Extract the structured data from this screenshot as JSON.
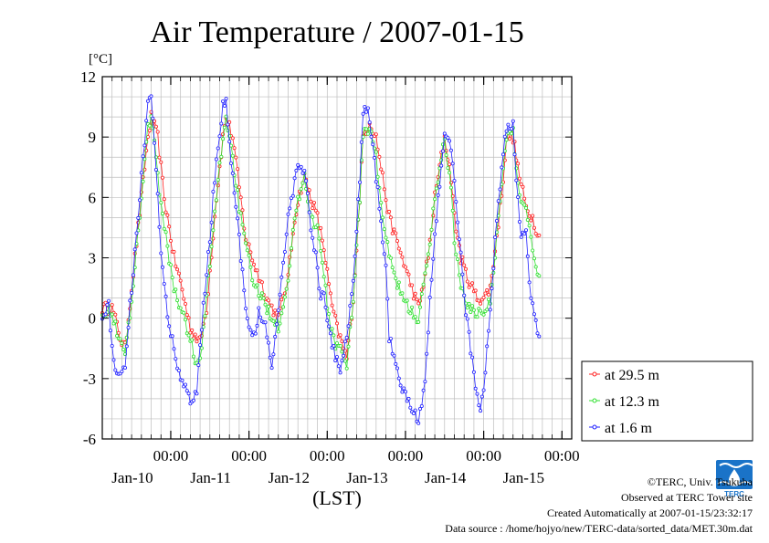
{
  "chart_data": {
    "type": "line",
    "title": "Air Temperature / 2007-01-15",
    "unit_label": "[°C]",
    "xlabel": "(LST)",
    "ylim": [
      -6,
      12
    ],
    "yticks": [
      -6,
      -3,
      0,
      3,
      6,
      9,
      12
    ],
    "xlim_hours": [
      0,
      144
    ],
    "date_ticks": [
      {
        "time": "00:00",
        "date": "Jan-10"
      },
      {
        "time": "00:00",
        "date": "Jan-11"
      },
      {
        "time": "00:00",
        "date": "Jan-12"
      },
      {
        "time": "00:00",
        "date": "Jan-13"
      },
      {
        "time": "00:00",
        "date": "Jan-14"
      },
      {
        "time": "00:00",
        "date": "Jan-15"
      }
    ],
    "legend_position": "right",
    "series": [
      {
        "name": "at 29.5 m",
        "color": "#ff2020",
        "anchors": [
          [
            0,
            0.5
          ],
          [
            3,
            0.5
          ],
          [
            6,
            -1.2
          ],
          [
            7,
            -1.5
          ],
          [
            9,
            1.5
          ],
          [
            12,
            6
          ],
          [
            14,
            9
          ],
          [
            15,
            10
          ],
          [
            17,
            9
          ],
          [
            19,
            6
          ],
          [
            22,
            3
          ],
          [
            24,
            1.8
          ],
          [
            27,
            -0.5
          ],
          [
            30,
            -1.2
          ],
          [
            32,
            0.5
          ],
          [
            35,
            6
          ],
          [
            37,
            9
          ],
          [
            38,
            10
          ],
          [
            40,
            9
          ],
          [
            42,
            6.5
          ],
          [
            44,
            4
          ],
          [
            47,
            2.5
          ],
          [
            51,
            0.8
          ],
          [
            54,
            0
          ],
          [
            57,
            2
          ],
          [
            59,
            5
          ],
          [
            61,
            6.5
          ],
          [
            62,
            7
          ],
          [
            64,
            6
          ],
          [
            66,
            5
          ],
          [
            68,
            3.5
          ],
          [
            70,
            1
          ],
          [
            72,
            -0.5
          ],
          [
            74,
            -1.5
          ],
          [
            75,
            -2
          ],
          [
            77,
            1
          ],
          [
            79,
            6
          ],
          [
            80,
            9
          ],
          [
            82,
            9.8
          ],
          [
            84,
            9
          ],
          [
            86,
            7
          ],
          [
            88,
            5
          ],
          [
            90,
            4
          ],
          [
            92,
            3
          ],
          [
            95,
            1.5
          ],
          [
            97,
            0.5
          ],
          [
            100,
            3
          ],
          [
            102,
            6
          ],
          [
            104,
            8
          ],
          [
            105,
            9
          ],
          [
            107,
            7
          ],
          [
            108,
            5
          ],
          [
            110,
            3
          ],
          [
            112,
            2
          ],
          [
            115,
            1
          ],
          [
            117,
            1
          ],
          [
            119,
            1.5
          ],
          [
            121,
            4
          ],
          [
            123,
            7
          ],
          [
            124,
            9
          ],
          [
            126,
            9
          ],
          [
            128,
            7
          ],
          [
            130,
            5.5
          ],
          [
            132,
            5
          ],
          [
            133,
            4.5
          ],
          [
            134,
            4
          ]
        ]
      },
      {
        "name": "at 12.3 m",
        "color": "#30e030",
        "anchors": [
          [
            0,
            0.4
          ],
          [
            3,
            0.3
          ],
          [
            6,
            -1.5
          ],
          [
            7,
            -1.8
          ],
          [
            9,
            1
          ],
          [
            12,
            6
          ],
          [
            14,
            9.5
          ],
          [
            15,
            10.2
          ],
          [
            17,
            7
          ],
          [
            19,
            4.5
          ],
          [
            22,
            1.5
          ],
          [
            24,
            0.5
          ],
          [
            27,
            -1
          ],
          [
            29,
            -2.3
          ],
          [
            30,
            -2.2
          ],
          [
            32,
            1
          ],
          [
            35,
            6
          ],
          [
            37,
            9
          ],
          [
            38,
            10
          ],
          [
            40,
            8
          ],
          [
            42,
            5.5
          ],
          [
            44,
            3.5
          ],
          [
            47,
            1.5
          ],
          [
            51,
            0.4
          ],
          [
            54,
            -0.4
          ],
          [
            57,
            2
          ],
          [
            59,
            5
          ],
          [
            61,
            6.5
          ],
          [
            62,
            7.1
          ],
          [
            64,
            5
          ],
          [
            66,
            4.5
          ],
          [
            68,
            2
          ],
          [
            70,
            -0.5
          ],
          [
            72,
            -1.5
          ],
          [
            74,
            -1.8
          ],
          [
            75,
            -2.2
          ],
          [
            77,
            1
          ],
          [
            79,
            6
          ],
          [
            80,
            9.2
          ],
          [
            82,
            9.5
          ],
          [
            84,
            8
          ],
          [
            86,
            5
          ],
          [
            88,
            3
          ],
          [
            90,
            2
          ],
          [
            92,
            1
          ],
          [
            95,
            0.3
          ],
          [
            97,
            0
          ],
          [
            100,
            3
          ],
          [
            102,
            6
          ],
          [
            104,
            8
          ],
          [
            105,
            8.8
          ],
          [
            107,
            6.5
          ],
          [
            108,
            4
          ],
          [
            110,
            1.5
          ],
          [
            112,
            0.5
          ],
          [
            115,
            0.3
          ],
          [
            117,
            0.2
          ],
          [
            119,
            1
          ],
          [
            121,
            4
          ],
          [
            123,
            7.5
          ],
          [
            124,
            9
          ],
          [
            126,
            9.2
          ],
          [
            128,
            6
          ],
          [
            130,
            5.5
          ],
          [
            132,
            3.5
          ],
          [
            134,
            2
          ]
        ]
      },
      {
        "name": "at 1.6 m",
        "color": "#2020ff",
        "anchors": [
          [
            0,
            0.2
          ],
          [
            2,
            0.6
          ],
          [
            3,
            -1.6
          ],
          [
            4,
            -2.6
          ],
          [
            6,
            -2.7
          ],
          [
            7,
            -2.2
          ],
          [
            9,
            1.5
          ],
          [
            12,
            7
          ],
          [
            14,
            10.5
          ],
          [
            15,
            11
          ],
          [
            16,
            8.5
          ],
          [
            18,
            3.5
          ],
          [
            20,
            0
          ],
          [
            22,
            -1.5
          ],
          [
            24,
            -3
          ],
          [
            26,
            -3.8
          ],
          [
            27,
            -4.2
          ],
          [
            29,
            -3.5
          ],
          [
            31,
            0.5
          ],
          [
            33,
            4
          ],
          [
            35,
            8
          ],
          [
            37,
            10.5
          ],
          [
            38,
            10.8
          ],
          [
            40,
            7
          ],
          [
            42,
            4
          ],
          [
            44,
            0.5
          ],
          [
            46,
            -1
          ],
          [
            47,
            -1
          ],
          [
            48,
            0.5
          ],
          [
            50,
            -0.5
          ],
          [
            52,
            -2.5
          ],
          [
            53,
            -1
          ],
          [
            55,
            2
          ],
          [
            57,
            5
          ],
          [
            59,
            6.8
          ],
          [
            60,
            7.5
          ],
          [
            62,
            7.3
          ],
          [
            63,
            6
          ],
          [
            64,
            4.5
          ],
          [
            65,
            3.5
          ],
          [
            66,
            2.5
          ],
          [
            67,
            1
          ],
          [
            68,
            1
          ],
          [
            70,
            -1
          ],
          [
            72,
            -2.2
          ],
          [
            73,
            -2.5
          ],
          [
            75,
            -1
          ],
          [
            77,
            2
          ],
          [
            79,
            7
          ],
          [
            80,
            10
          ],
          [
            81,
            10.5
          ],
          [
            82,
            9.8
          ],
          [
            84,
            7
          ],
          [
            86,
            4
          ],
          [
            87,
            2.5
          ],
          [
            88,
            -1
          ],
          [
            90,
            -2
          ],
          [
            91,
            -3
          ],
          [
            92,
            -3.5
          ],
          [
            94,
            -4
          ],
          [
            96,
            -4.8
          ],
          [
            97,
            -5.2
          ],
          [
            99,
            -3
          ],
          [
            101,
            2
          ],
          [
            103,
            6
          ],
          [
            105,
            9
          ],
          [
            106,
            9.2
          ],
          [
            108,
            7
          ],
          [
            110,
            3
          ],
          [
            111,
            1
          ],
          [
            113,
            -1.5
          ],
          [
            115,
            -4
          ],
          [
            116,
            -4.5
          ],
          [
            117,
            -3.5
          ],
          [
            118,
            -1.5
          ],
          [
            119,
            0.5
          ],
          [
            121,
            5
          ],
          [
            123,
            8
          ],
          [
            124,
            9.5
          ],
          [
            126,
            9.6
          ],
          [
            127,
            7
          ],
          [
            128,
            4.5
          ],
          [
            129,
            4
          ],
          [
            130,
            4.5
          ],
          [
            131,
            2
          ],
          [
            132,
            0.5
          ],
          [
            133,
            0
          ],
          [
            134,
            -1
          ]
        ]
      }
    ]
  },
  "credits": {
    "copyright": "©TERC, Univ. Tsukuba",
    "site": "Observed at TERC Tower site",
    "created": "Created Automatically at 2007-01-15/23:32:17",
    "source": "Data source : /home/hojyo/new/TERC-data/sorted_data/MET.30m.dat"
  },
  "logo": {
    "text": "TERC",
    "color": "#1a73c8"
  }
}
